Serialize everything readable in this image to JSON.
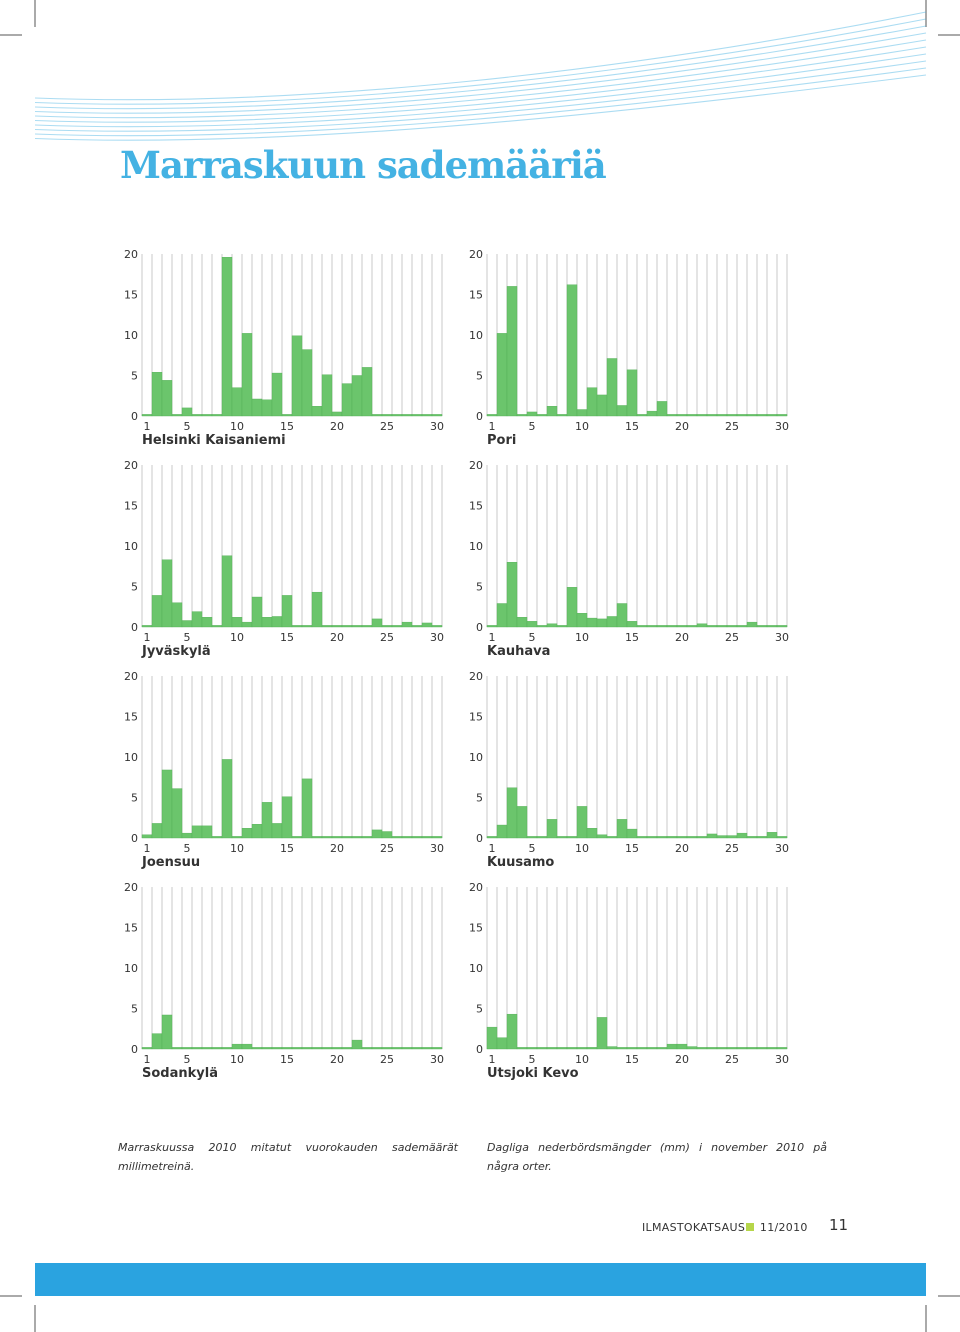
{
  "title": "Marraskuun sademääriä",
  "colors": {
    "title": "#44b2e3",
    "bar": "#6bc56c",
    "bar_edge": "#52ad55",
    "grid": "#c8c8c8",
    "band": "#2aa3e0",
    "footer_square": "#b6d64a"
  },
  "chart_data": [
    {
      "type": "bar",
      "station": "Helsinki Kaisaniemi",
      "x": [
        1,
        2,
        3,
        4,
        5,
        6,
        7,
        8,
        9,
        10,
        11,
        12,
        13,
        14,
        15,
        16,
        17,
        18,
        19,
        20,
        21,
        22,
        23,
        24,
        25,
        26,
        27,
        28,
        29,
        30
      ],
      "xticks": [
        1,
        5,
        10,
        15,
        20,
        25,
        30
      ],
      "yticks": [
        0,
        5,
        10,
        15,
        20
      ],
      "ylim": [
        0,
        20
      ],
      "values": [
        0,
        5.4,
        4.4,
        0,
        1,
        0,
        0,
        0,
        19.6,
        3.5,
        10.2,
        2.1,
        2,
        5.3,
        0,
        9.9,
        8.2,
        1.2,
        5.1,
        0.5,
        4,
        5,
        6,
        0,
        0,
        0,
        0,
        0,
        0,
        0
      ]
    },
    {
      "type": "bar",
      "station": "Pori",
      "x": [
        1,
        2,
        3,
        4,
        5,
        6,
        7,
        8,
        9,
        10,
        11,
        12,
        13,
        14,
        15,
        16,
        17,
        18,
        19,
        20,
        21,
        22,
        23,
        24,
        25,
        26,
        27,
        28,
        29,
        30
      ],
      "xticks": [
        1,
        5,
        10,
        15,
        20,
        25,
        30
      ],
      "yticks": [
        0,
        5,
        10,
        15,
        20
      ],
      "ylim": [
        0,
        20
      ],
      "values": [
        0,
        10.2,
        16,
        0,
        0.5,
        0,
        1.2,
        0,
        16.2,
        0.8,
        3.5,
        2.6,
        7.1,
        1.3,
        5.7,
        0,
        0.6,
        1.8,
        0,
        0,
        0,
        0,
        0,
        0,
        0,
        0,
        0,
        0,
        0,
        0
      ]
    },
    {
      "type": "bar",
      "station": "Jyväskylä",
      "x": [
        1,
        2,
        3,
        4,
        5,
        6,
        7,
        8,
        9,
        10,
        11,
        12,
        13,
        14,
        15,
        16,
        17,
        18,
        19,
        20,
        21,
        22,
        23,
        24,
        25,
        26,
        27,
        28,
        29,
        30
      ],
      "xticks": [
        1,
        5,
        10,
        15,
        20,
        25,
        30
      ],
      "yticks": [
        0,
        5,
        10,
        15,
        20
      ],
      "ylim": [
        0,
        20
      ],
      "values": [
        0,
        3.9,
        8.3,
        3,
        0.8,
        1.9,
        1.2,
        0,
        8.8,
        1.2,
        0.6,
        3.7,
        1.2,
        1.3,
        3.9,
        0,
        0,
        4.3,
        0,
        0,
        0,
        0,
        0,
        1,
        0,
        0,
        0.6,
        0,
        0.5,
        0
      ]
    },
    {
      "type": "bar",
      "station": "Kauhava",
      "x": [
        1,
        2,
        3,
        4,
        5,
        6,
        7,
        8,
        9,
        10,
        11,
        12,
        13,
        14,
        15,
        16,
        17,
        18,
        19,
        20,
        21,
        22,
        23,
        24,
        25,
        26,
        27,
        28,
        29,
        30
      ],
      "xticks": [
        1,
        5,
        10,
        15,
        20,
        25,
        30
      ],
      "yticks": [
        0,
        5,
        10,
        15,
        20
      ],
      "ylim": [
        0,
        20
      ],
      "values": [
        0,
        2.9,
        8,
        1.2,
        0.7,
        0,
        0.4,
        0,
        4.9,
        1.7,
        1.1,
        1,
        1.3,
        2.9,
        0.7,
        0,
        0,
        0,
        0,
        0,
        0,
        0.4,
        0,
        0,
        0,
        0,
        0.6,
        0,
        0,
        0
      ]
    },
    {
      "type": "bar",
      "station": "Joensuu",
      "x": [
        1,
        2,
        3,
        4,
        5,
        6,
        7,
        8,
        9,
        10,
        11,
        12,
        13,
        14,
        15,
        16,
        17,
        18,
        19,
        20,
        21,
        22,
        23,
        24,
        25,
        26,
        27,
        28,
        29,
        30
      ],
      "xticks": [
        1,
        5,
        10,
        15,
        20,
        25,
        30
      ],
      "yticks": [
        0,
        5,
        10,
        15,
        20
      ],
      "ylim": [
        0,
        20
      ],
      "values": [
        0.4,
        1.8,
        8.4,
        6.1,
        0.6,
        1.5,
        1.5,
        0,
        9.7,
        0,
        1.2,
        1.7,
        4.4,
        1.8,
        5.1,
        0,
        7.3,
        0,
        0,
        0,
        0,
        0,
        0,
        1,
        0.8,
        0,
        0,
        0,
        0,
        0
      ]
    },
    {
      "type": "bar",
      "station": "Kuusamo",
      "x": [
        1,
        2,
        3,
        4,
        5,
        6,
        7,
        8,
        9,
        10,
        11,
        12,
        13,
        14,
        15,
        16,
        17,
        18,
        19,
        20,
        21,
        22,
        23,
        24,
        25,
        26,
        27,
        28,
        29,
        30
      ],
      "xticks": [
        1,
        5,
        10,
        15,
        20,
        25,
        30
      ],
      "yticks": [
        0,
        5,
        10,
        15,
        20
      ],
      "ylim": [
        0,
        20
      ],
      "values": [
        0,
        1.6,
        6.2,
        3.9,
        0,
        0,
        2.3,
        0,
        0,
        3.9,
        1.2,
        0.4,
        0,
        2.3,
        1.1,
        0,
        0,
        0,
        0.2,
        0,
        0,
        0,
        0.5,
        0.3,
        0.3,
        0.6,
        0.2,
        0.2,
        0.7,
        0
      ]
    },
    {
      "type": "bar",
      "station": "Sodankylä",
      "x": [
        1,
        2,
        3,
        4,
        5,
        6,
        7,
        8,
        9,
        10,
        11,
        12,
        13,
        14,
        15,
        16,
        17,
        18,
        19,
        20,
        21,
        22,
        23,
        24,
        25,
        26,
        27,
        28,
        29,
        30
      ],
      "xticks": [
        1,
        5,
        10,
        15,
        20,
        25,
        30
      ],
      "yticks": [
        0,
        5,
        10,
        15,
        20
      ],
      "ylim": [
        0,
        20
      ],
      "values": [
        0,
        1.9,
        4.2,
        0,
        0,
        0,
        0,
        0,
        0,
        0.6,
        0.6,
        0,
        0,
        0,
        0,
        0,
        0,
        0,
        0,
        0,
        0,
        1.1,
        0,
        0,
        0,
        0,
        0,
        0,
        0,
        0
      ]
    },
    {
      "type": "bar",
      "station": "Utsjoki Kevo",
      "x": [
        1,
        2,
        3,
        4,
        5,
        6,
        7,
        8,
        9,
        10,
        11,
        12,
        13,
        14,
        15,
        16,
        17,
        18,
        19,
        20,
        21,
        22,
        23,
        24,
        25,
        26,
        27,
        28,
        29,
        30
      ],
      "xticks": [
        1,
        5,
        10,
        15,
        20,
        25,
        30
      ],
      "yticks": [
        0,
        5,
        10,
        15,
        20
      ],
      "ylim": [
        0,
        20
      ],
      "values": [
        2.7,
        1.4,
        4.3,
        0,
        0,
        0,
        0,
        0,
        0,
        0,
        0.2,
        3.9,
        0.3,
        0,
        0,
        0,
        0,
        0,
        0.6,
        0.6,
        0.3,
        0,
        0,
        0,
        0,
        0,
        0,
        0,
        0,
        0
      ]
    }
  ],
  "caption_fi": "Marraskuussa 2010 mitatut vuorokauden sademäärät millimetreinä.",
  "caption_sv": "Dagliga nederbördsmängder (mm) i november 2010 på några orter.",
  "footer": {
    "magazine": "ILMASTOKATSAUS",
    "issue": "11/2010",
    "page": "11"
  }
}
